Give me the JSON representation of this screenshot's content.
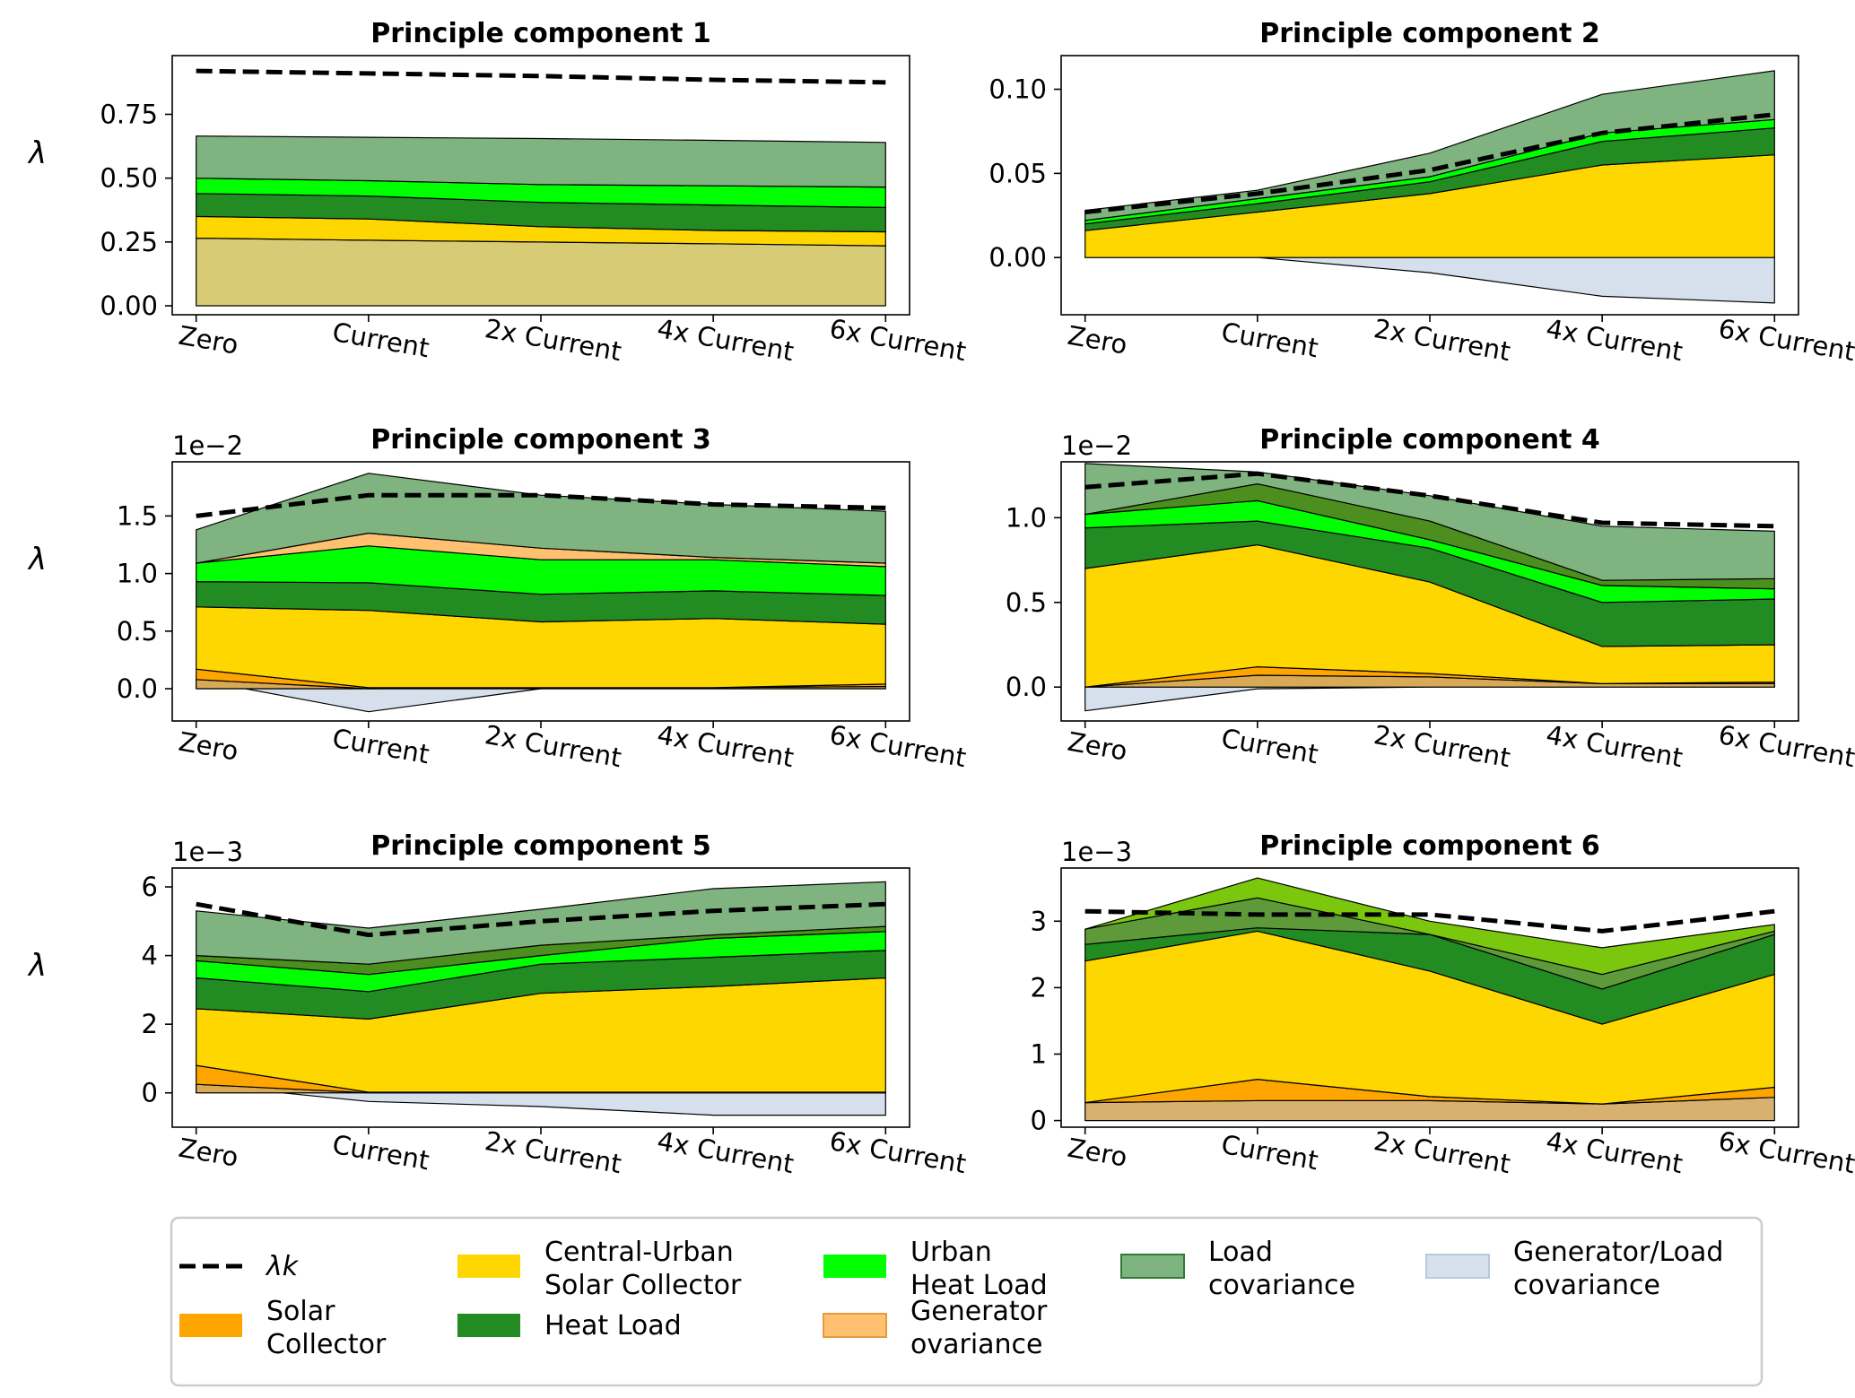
{
  "figure": {
    "legend": {
      "items": [
        {
          "key": "lambda_k",
          "label": [
            "λk"
          ],
          "color": "#000000",
          "style": "dashed-line"
        },
        {
          "key": "solar_collector",
          "label": [
            "Solar",
            "Collector"
          ],
          "color": "#ffa500"
        },
        {
          "key": "central_urban_solar",
          "label": [
            "Central-Urban",
            "Solar Collector"
          ],
          "color": "#ffd700"
        },
        {
          "key": "heat_load",
          "label": [
            "Heat Load"
          ],
          "color": "#228b22"
        },
        {
          "key": "urban_heat_load",
          "label": [
            "Urban",
            "Heat Load"
          ],
          "color": "#00ff00"
        },
        {
          "key": "generator_covariance",
          "label": [
            "Generator",
            "ovariance"
          ],
          "color": "#ffc170"
        },
        {
          "key": "load_covariance",
          "label": [
            "Load",
            "covariance"
          ],
          "color": "#7fb37f"
        },
        {
          "key": "generator_load_covariance",
          "label": [
            "Generator/Load",
            "covariance"
          ],
          "color": "#d5e0ec"
        }
      ]
    }
  },
  "chart_data": [
    {
      "type": "area",
      "title": "Principle component 1",
      "ylabel": "λ",
      "multiplier": "",
      "categories": [
        "Zero",
        "Current",
        "2x Current",
        "4x Current",
        "6x Current"
      ],
      "ylim": [
        -0.035,
        0.98
      ],
      "yticks": [
        0.0,
        0.25,
        0.5,
        0.75
      ],
      "ytick_labels": [
        "0.00",
        "0.25",
        "0.50",
        "0.75"
      ],
      "lambda": [
        0.92,
        0.91,
        0.9,
        0.885,
        0.875
      ],
      "layers": [
        {
          "key": "generator_covariance",
          "color": "#d8cb76",
          "base": [
            0,
            0,
            0,
            0,
            0
          ],
          "top": [
            0.265,
            0.257,
            0.25,
            0.243,
            0.235
          ]
        },
        {
          "key": "central_urban_solar",
          "color": "#ffd700",
          "base": [
            0.265,
            0.257,
            0.25,
            0.243,
            0.235
          ],
          "top": [
            0.35,
            0.34,
            0.31,
            0.295,
            0.29
          ]
        },
        {
          "key": "heat_load",
          "color": "#228b22",
          "base": [
            0.35,
            0.34,
            0.31,
            0.295,
            0.29
          ],
          "top": [
            0.44,
            0.43,
            0.405,
            0.395,
            0.385
          ]
        },
        {
          "key": "urban_heat_load",
          "color": "#00ff00",
          "base": [
            0.44,
            0.43,
            0.405,
            0.395,
            0.385
          ],
          "top": [
            0.5,
            0.49,
            0.475,
            0.47,
            0.465
          ]
        },
        {
          "key": "load_covariance",
          "color": "#7fb37f",
          "base": [
            0.5,
            0.49,
            0.475,
            0.47,
            0.465
          ],
          "top": [
            0.665,
            0.66,
            0.655,
            0.648,
            0.64
          ]
        }
      ]
    },
    {
      "type": "area",
      "title": "Principle component 2",
      "ylabel": "",
      "multiplier": "",
      "categories": [
        "Zero",
        "Current",
        "2x Current",
        "4x Current",
        "6x Current"
      ],
      "ylim": [
        -0.034,
        0.12
      ],
      "yticks": [
        0.0,
        0.05,
        0.1
      ],
      "ytick_labels": [
        "0.00",
        "0.05",
        "0.10"
      ],
      "lambda": [
        0.027,
        0.038,
        0.052,
        0.074,
        0.085
      ],
      "layers": [
        {
          "key": "generator_load_covariance",
          "color": "#d5e0ec",
          "base": [
            0,
            0,
            0,
            0,
            0
          ],
          "top": [
            0,
            0,
            -0.009,
            -0.023,
            -0.027
          ]
        },
        {
          "key": "central_urban_solar",
          "color": "#ffd700",
          "base": [
            0,
            0,
            0,
            0,
            0
          ],
          "top": [
            0.016,
            0.027,
            0.038,
            0.055,
            0.061
          ]
        },
        {
          "key": "heat_load",
          "color": "#228b22",
          "base": [
            0.016,
            0.027,
            0.038,
            0.055,
            0.061
          ],
          "top": [
            0.02,
            0.032,
            0.045,
            0.069,
            0.077
          ]
        },
        {
          "key": "urban_heat_load",
          "color": "#00ff00",
          "base": [
            0.02,
            0.032,
            0.045,
            0.069,
            0.077
          ],
          "top": [
            0.022,
            0.035,
            0.048,
            0.074,
            0.082
          ]
        },
        {
          "key": "load_covariance",
          "color": "#7fb37f",
          "base": [
            0.022,
            0.035,
            0.048,
            0.074,
            0.082
          ],
          "top": [
            0.028,
            0.04,
            0.062,
            0.097,
            0.111
          ]
        }
      ]
    },
    {
      "type": "area",
      "title": "Principle component 3",
      "ylabel": "λ",
      "multiplier": "1e−2",
      "categories": [
        "Zero",
        "Current",
        "2x Current",
        "4x Current",
        "6x Current"
      ],
      "ylim": [
        -0.28,
        1.97
      ],
      "yticks": [
        0.0,
        0.5,
        1.0,
        1.5
      ],
      "ytick_labels": [
        "0.0",
        "0.5",
        "1.0",
        "1.5"
      ],
      "lambda": [
        1.5,
        1.68,
        1.68,
        1.6,
        1.57
      ],
      "layers": [
        {
          "key": "generator_load_covariance",
          "color": "#d5e0ec",
          "base": [
            0,
            0,
            0,
            0,
            0
          ],
          "top": [
            0.08,
            -0.2,
            0.0,
            0.0,
            0.0
          ]
        },
        {
          "key": "generator_covariance",
          "color": "#d8aa55",
          "base": [
            0,
            0,
            0,
            0,
            0
          ],
          "top": [
            0.08,
            0,
            0.01,
            0.01,
            0.02
          ]
        },
        {
          "key": "solar_collector",
          "color": "#ffa500",
          "base": [
            0.08,
            0,
            0.01,
            0.01,
            0.02
          ],
          "top": [
            0.17,
            0.01,
            0.01,
            0.01,
            0.04
          ]
        },
        {
          "key": "central_urban_solar",
          "color": "#ffd700",
          "base": [
            0.17,
            0.01,
            0.01,
            0.01,
            0.04
          ],
          "top": [
            0.71,
            0.68,
            0.58,
            0.61,
            0.56
          ]
        },
        {
          "key": "heat_load",
          "color": "#228b22",
          "base": [
            0.71,
            0.68,
            0.58,
            0.61,
            0.56
          ],
          "top": [
            0.93,
            0.92,
            0.82,
            0.85,
            0.81
          ]
        },
        {
          "key": "urban_heat_load",
          "color": "#00ff00",
          "base": [
            0.93,
            0.92,
            0.82,
            0.85,
            0.81
          ],
          "top": [
            1.09,
            1.24,
            1.12,
            1.12,
            1.06
          ]
        },
        {
          "key": "generator_covariance",
          "color": "#ffc170",
          "base": [
            1.09,
            1.24,
            1.12,
            1.12,
            1.06
          ],
          "top": [
            1.09,
            1.35,
            1.22,
            1.14,
            1.09
          ]
        },
        {
          "key": "load_covariance",
          "color": "#7fb37f",
          "base": [
            1.09,
            1.35,
            1.22,
            1.14,
            1.09
          ],
          "top": [
            1.38,
            1.87,
            1.68,
            1.6,
            1.54
          ]
        }
      ]
    },
    {
      "type": "area",
      "title": "Principle component 4",
      "ylabel": "",
      "multiplier": "1e−2",
      "categories": [
        "Zero",
        "Current",
        "2x Current",
        "4x Current",
        "6x Current"
      ],
      "ylim": [
        -0.2,
        1.33
      ],
      "yticks": [
        0.0,
        0.5,
        1.0
      ],
      "ytick_labels": [
        "0.0",
        "0.5",
        "1.0"
      ],
      "lambda": [
        1.18,
        1.26,
        1.13,
        0.97,
        0.95
      ],
      "layers": [
        {
          "key": "generator_load_covariance",
          "color": "#d5e0ec",
          "base": [
            0,
            0,
            0,
            0,
            0
          ],
          "top": [
            -0.14,
            -0.01,
            0.0,
            0.01,
            0.02
          ]
        },
        {
          "key": "generator_covariance",
          "color": "#d8aa55",
          "base": [
            0,
            0,
            0,
            0,
            0
          ],
          "top": [
            0,
            0.07,
            0.06,
            0.02,
            0.02
          ]
        },
        {
          "key": "solar_collector",
          "color": "#ffa500",
          "base": [
            0,
            0.07,
            0.06,
            0.02,
            0.02
          ],
          "top": [
            0,
            0.12,
            0.08,
            0.02,
            0.03
          ]
        },
        {
          "key": "central_urban_solar",
          "color": "#ffd700",
          "base": [
            0,
            0.12,
            0.08,
            0.02,
            0.03
          ],
          "top": [
            0.7,
            0.84,
            0.62,
            0.24,
            0.25
          ]
        },
        {
          "key": "heat_load",
          "color": "#228b22",
          "base": [
            0.7,
            0.84,
            0.62,
            0.24,
            0.25
          ],
          "top": [
            0.94,
            0.98,
            0.82,
            0.5,
            0.52
          ]
        },
        {
          "key": "urban_heat_load",
          "color": "#00ff00",
          "base": [
            0.94,
            0.98,
            0.82,
            0.5,
            0.52
          ],
          "top": [
            1.02,
            1.1,
            0.87,
            0.6,
            0.58
          ]
        },
        {
          "key": "heat_load",
          "color": "#4c8f1e",
          "base": [
            1.02,
            1.1,
            0.87,
            0.6,
            0.58
          ],
          "top": [
            1.02,
            1.2,
            0.98,
            0.63,
            0.64
          ]
        },
        {
          "key": "load_covariance",
          "color": "#7fb37f",
          "base": [
            1.02,
            1.2,
            0.98,
            0.63,
            0.64
          ],
          "top": [
            1.32,
            1.27,
            1.13,
            0.95,
            0.92
          ]
        }
      ]
    },
    {
      "type": "area",
      "title": "Principle component 5",
      "ylabel": "λ",
      "multiplier": "1e−3",
      "categories": [
        "Zero",
        "Current",
        "2x Current",
        "4x Current",
        "6x Current"
      ],
      "ylim": [
        -1.0,
        6.55
      ],
      "yticks": [
        0,
        2,
        4,
        6
      ],
      "ytick_labels": [
        "0",
        "2",
        "4",
        "6"
      ],
      "lambda": [
        5.5,
        4.6,
        5.0,
        5.3,
        5.5
      ],
      "layers": [
        {
          "key": "generator_load_covariance",
          "color": "#d5e0ec",
          "base": [
            0,
            0,
            0,
            0,
            0
          ],
          "top": [
            0.25,
            -0.25,
            -0.4,
            -0.65,
            -0.65
          ]
        },
        {
          "key": "generator_covariance",
          "color": "#d8aa55",
          "base": [
            0,
            0,
            0,
            0,
            0
          ],
          "top": [
            0.25,
            0,
            0,
            0,
            0
          ]
        },
        {
          "key": "solar_collector",
          "color": "#ffa500",
          "base": [
            0.25,
            0,
            0,
            0,
            0
          ],
          "top": [
            0.8,
            0.02,
            0.02,
            0.02,
            0.02
          ]
        },
        {
          "key": "central_urban_solar",
          "color": "#ffd700",
          "base": [
            0.8,
            0.02,
            0.02,
            0.02,
            0.02
          ],
          "top": [
            2.45,
            2.15,
            2.9,
            3.1,
            3.35
          ]
        },
        {
          "key": "heat_load",
          "color": "#228b22",
          "base": [
            2.45,
            2.15,
            2.9,
            3.1,
            3.35
          ],
          "top": [
            3.35,
            2.95,
            3.75,
            3.95,
            4.15
          ]
        },
        {
          "key": "urban_heat_load",
          "color": "#00ff00",
          "base": [
            3.35,
            2.95,
            3.75,
            3.95,
            4.15
          ],
          "top": [
            3.85,
            3.45,
            4.0,
            4.5,
            4.7
          ]
        },
        {
          "key": "heat_load",
          "color": "#4c8f1e",
          "base": [
            3.85,
            3.45,
            4.0,
            4.5,
            4.7
          ],
          "top": [
            4.0,
            3.75,
            4.3,
            4.6,
            4.85
          ]
        },
        {
          "key": "load_covariance",
          "color": "#7fb37f",
          "base": [
            4.0,
            3.75,
            4.3,
            4.6,
            4.85
          ],
          "top": [
            5.3,
            4.8,
            5.35,
            5.95,
            6.15
          ]
        }
      ]
    },
    {
      "type": "area",
      "title": "Principle component 6",
      "ylabel": "",
      "multiplier": "1e−3",
      "categories": [
        "Zero",
        "Current",
        "2x Current",
        "4x Current",
        "6x Current"
      ],
      "ylim": [
        -0.1,
        3.8
      ],
      "yticks": [
        0,
        1,
        2,
        3
      ],
      "ytick_labels": [
        "0",
        "1",
        "2",
        "3"
      ],
      "lambda": [
        3.15,
        3.1,
        3.1,
        2.85,
        3.15
      ],
      "layers": [
        {
          "key": "generator_covariance",
          "color": "#d8b06f",
          "base": [
            0,
            0,
            0,
            0,
            0
          ],
          "top": [
            0.27,
            0.3,
            0.3,
            0.25,
            0.35
          ]
        },
        {
          "key": "solar_collector",
          "color": "#ffa500",
          "base": [
            0.27,
            0.3,
            0.3,
            0.25,
            0.35
          ],
          "top": [
            0.27,
            0.62,
            0.36,
            0.25,
            0.5
          ]
        },
        {
          "key": "central_urban_solar",
          "color": "#ffd700",
          "base": [
            0.27,
            0.62,
            0.36,
            0.25,
            0.5
          ],
          "top": [
            2.4,
            2.85,
            2.25,
            1.45,
            2.2
          ]
        },
        {
          "key": "heat_load",
          "color": "#228b22",
          "base": [
            2.4,
            2.85,
            2.25,
            1.45,
            2.2
          ],
          "top": [
            2.65,
            2.9,
            2.8,
            1.98,
            2.8
          ]
        },
        {
          "key": "load_covariance",
          "color": "#5f9a3a",
          "base": [
            2.65,
            2.9,
            2.8,
            1.98,
            2.8
          ],
          "top": [
            2.88,
            3.35,
            2.8,
            2.2,
            2.85
          ]
        },
        {
          "key": "urban_heat_load",
          "color": "#7ac70e",
          "base": [
            2.88,
            3.35,
            2.8,
            2.2,
            2.85
          ],
          "top": [
            2.88,
            3.65,
            3.0,
            2.6,
            2.95
          ]
        }
      ]
    }
  ]
}
